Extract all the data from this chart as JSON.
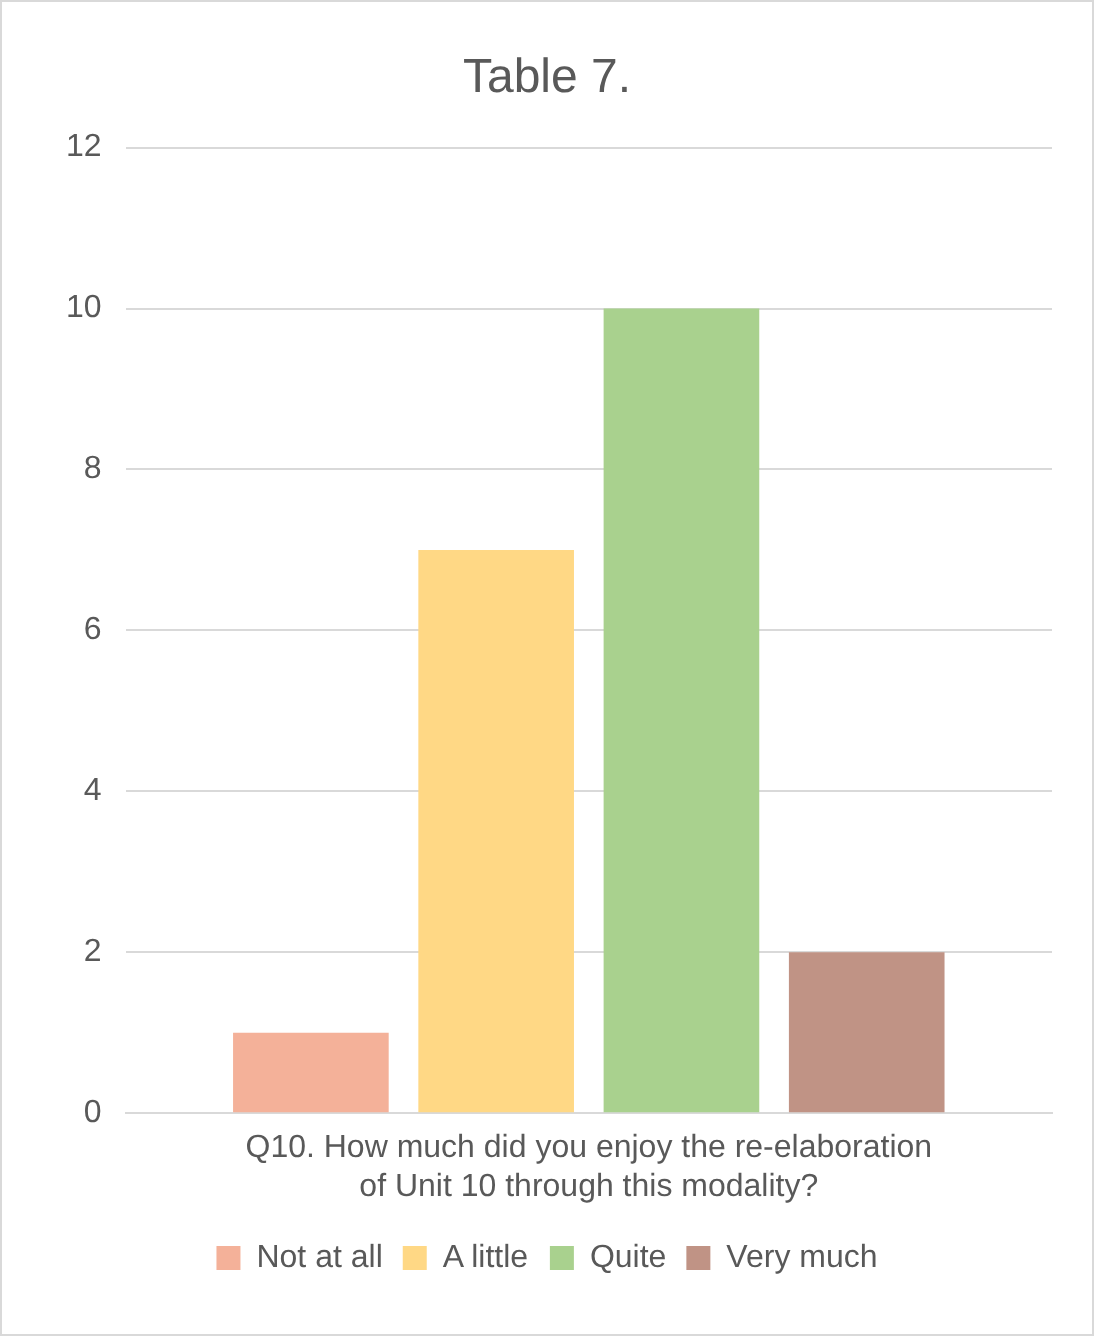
{
  "chart_data": {
    "type": "bar",
    "title": "Table 7.",
    "categories": [
      "Q10. How much did you enjoy the re-elaboration of Unit 10 through this modality?"
    ],
    "series": [
      {
        "name": "Not at all",
        "color": "#f4b199",
        "values": [
          1
        ]
      },
      {
        "name": "A little",
        "color": "#ffd885",
        "values": [
          7
        ]
      },
      {
        "name": "Quite",
        "color": "#a9d18e",
        "values": [
          10
        ]
      },
      {
        "name": "Very much",
        "color": "#c09385",
        "values": [
          2
        ]
      }
    ],
    "ylim": [
      0,
      12
    ],
    "yticks": [
      0,
      2,
      4,
      6,
      8,
      10,
      12
    ],
    "grid": "y",
    "legend": "bottom"
  }
}
